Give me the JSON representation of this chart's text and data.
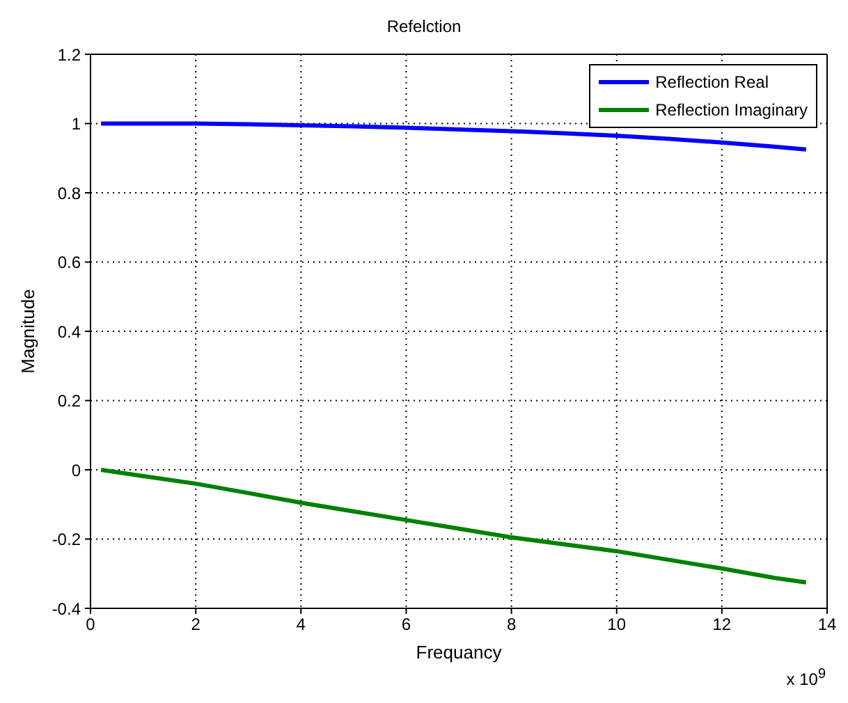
{
  "chart_data": {
    "type": "line",
    "title": "Refelction",
    "xlabel": "Frequancy",
    "ylabel": "Magnitude",
    "annotations": [
      "x 10$^{9}$"
    ],
    "x": [
      0.2,
      1,
      2,
      3,
      4,
      5,
      6,
      7,
      8,
      9,
      10,
      11,
      12,
      13,
      13.6
    ],
    "series": [
      {
        "name": "Reflection Real",
        "color": "#0000ff",
        "values": [
          1.0,
          1.0,
          1.0,
          0.998,
          0.995,
          0.992,
          0.988,
          0.983,
          0.978,
          0.972,
          0.965,
          0.956,
          0.945,
          0.933,
          0.925
        ]
      },
      {
        "name": "Reflection Imaginary",
        "color": "#008000",
        "values": [
          0,
          -0.018,
          -0.04,
          -0.067,
          -0.095,
          -0.12,
          -0.145,
          -0.17,
          -0.195,
          -0.215,
          -0.235,
          -0.26,
          -0.285,
          -0.312,
          -0.325
        ]
      }
    ],
    "xlim": [
      0,
      14
    ],
    "xticks": [
      0,
      2,
      4,
      6,
      8,
      10,
      12,
      14
    ],
    "ylim": [
      -0.4,
      1.2
    ],
    "yticks": [
      -0.4,
      -0.2,
      0,
      0.2,
      0.4,
      0.6,
      0.8,
      1,
      1.2
    ],
    "grid": true,
    "legend": "top right",
    "marker": "none",
    "line_style": "solid"
  }
}
